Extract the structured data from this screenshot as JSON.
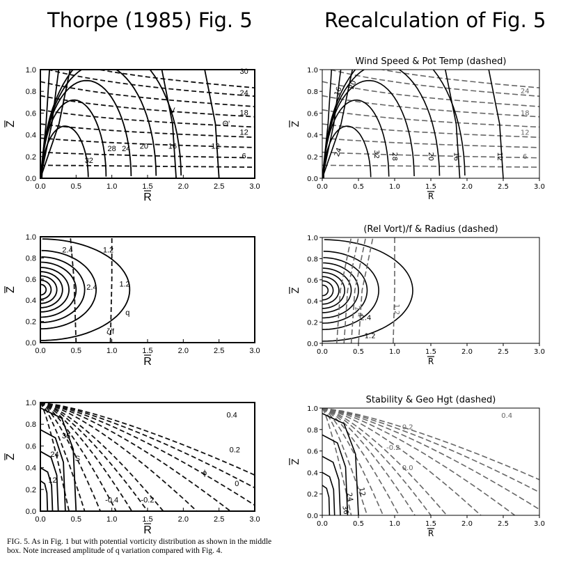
{
  "headings": {
    "left": "Thorpe (1985) Fig. 5",
    "right": "Recalculation of  Fig. 5"
  },
  "caption": {
    "label": "FIG. 5.",
    "text": "As in Fig. 1 but with potential vorticity distribution as shown in the middle box. Note increased amplitude of q variation compared with Fig. 4."
  },
  "chart_data": [
    {
      "type": "contour",
      "id": "thorpe-top",
      "title": "",
      "xlabel": "R",
      "ylabel": "Z",
      "xlim": [
        0,
        3
      ],
      "ylim": [
        0,
        1
      ],
      "xticks": [
        "0.0",
        "0.5",
        "1.0",
        "1.5",
        "2.0",
        "2.5",
        "3.0"
      ],
      "yticks": [
        "0.0",
        "0.2",
        "0.4",
        "0.6",
        "0.8",
        "1.0"
      ],
      "solid_labels": [
        "32",
        "28",
        "24",
        "20",
        "16",
        "12"
      ],
      "dashed_labels": [
        "30",
        "24",
        "18",
        "12",
        "6"
      ],
      "annotations": [
        "V",
        "Θ'"
      ]
    },
    {
      "type": "contour",
      "id": "thorpe-mid",
      "title": "",
      "xlabel": "R",
      "ylabel": "Z",
      "xlim": [
        0,
        3
      ],
      "ylim": [
        0,
        1
      ],
      "xticks": [
        "0.0",
        "0.5",
        "1.0",
        "1.5",
        "2.0",
        "2.5",
        "3.0"
      ],
      "yticks": [
        "0.0",
        "0.2",
        "0.4",
        "0.6",
        "0.8",
        "1.0"
      ],
      "solid_labels": [
        "2.4",
        "1.2"
      ],
      "dashed_labels": [
        "2.4",
        "1.2"
      ],
      "annotations": [
        "q",
        "ζ/f"
      ]
    },
    {
      "type": "contour",
      "id": "thorpe-bot",
      "title": "",
      "xlabel": "R",
      "ylabel": "Z",
      "xlim": [
        0,
        3
      ],
      "ylim": [
        0,
        1
      ],
      "xticks": [
        "0.0",
        "0.5",
        "1.0",
        "1.5",
        "2.0",
        "2.5",
        "3.0"
      ],
      "yticks": [
        "0.0",
        "0.2",
        "0.4",
        "0.6",
        "0.8",
        "1.0"
      ],
      "solid_labels": [
        "36",
        "24",
        "12"
      ],
      "dashed_labels": [
        "0.4",
        "0.2",
        "-0.4",
        "-0.2",
        "0"
      ],
      "annotations": [
        "S",
        "ϕ"
      ]
    },
    {
      "type": "contour",
      "id": "recalc-top",
      "title": "Wind Speed & Pot Temp (dashed)",
      "xlabel": "R",
      "ylabel": "Z",
      "xlim": [
        0,
        3
      ],
      "ylim": [
        0,
        1
      ],
      "xticks": [
        "0.0",
        "0.5",
        "1.0",
        "1.5",
        "2.0",
        "2.5",
        "3.0"
      ],
      "yticks": [
        "0.0",
        "0.2",
        "0.4",
        "0.6",
        "0.8",
        "1.0"
      ],
      "solid_labels": [
        "20",
        "16",
        "24",
        "32",
        "28",
        "20",
        "16",
        "12"
      ],
      "dashed_labels": [
        "24",
        "18",
        "12",
        "6"
      ]
    },
    {
      "type": "contour",
      "id": "recalc-mid",
      "title": "(Rel Vort)/f & Radius (dashed)",
      "xlabel": "R",
      "ylabel": "Z",
      "xlim": [
        0,
        3
      ],
      "ylim": [
        0,
        1
      ],
      "xticks": [
        "0.0",
        "0.5",
        "1.0",
        "1.5",
        "2.0",
        "2.5",
        "3.0"
      ],
      "yticks": [
        "0.0",
        "0.2",
        "0.4",
        "0.6",
        "0.8",
        "1.0"
      ],
      "solid_labels": [
        "2.4",
        "1.2"
      ],
      "dashed_labels": [
        "2.4",
        "1.2"
      ]
    },
    {
      "type": "contour",
      "id": "recalc-bot",
      "title": "Stability & Geo Hgt (dashed)",
      "xlabel": "R",
      "ylabel": "Z",
      "xlim": [
        0,
        3
      ],
      "ylim": [
        0,
        1
      ],
      "xticks": [
        "0.0",
        "0.5",
        "1.0",
        "1.5",
        "2.0",
        "2.5",
        "3.0"
      ],
      "yticks": [
        "0.0",
        "0.2",
        "0.4",
        "0.6",
        "0.8",
        "1.0"
      ],
      "solid_labels": [
        "12",
        "24",
        "36"
      ],
      "dashed_labels": [
        "0.4",
        "0.2",
        "-0.2",
        "0.0"
      ]
    }
  ]
}
